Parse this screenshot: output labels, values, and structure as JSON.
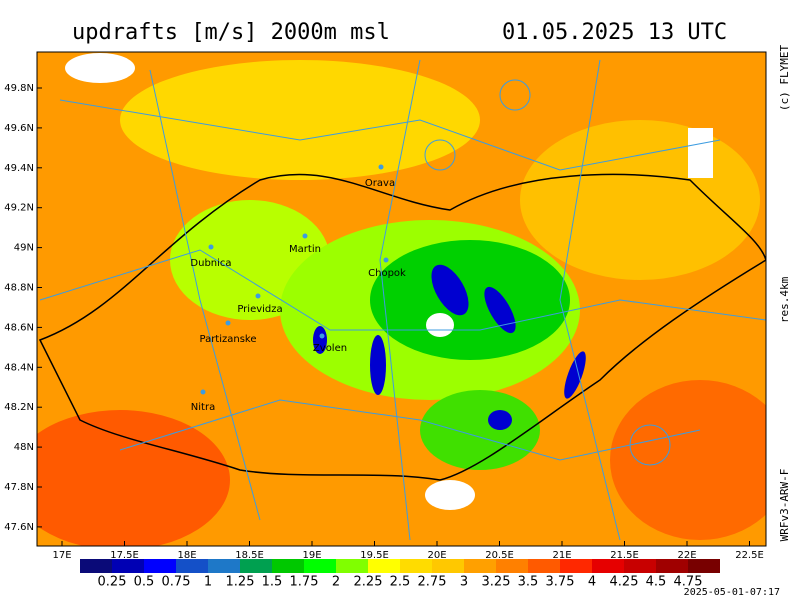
{
  "header": {
    "title": "updrafts [m/s] 2000m msl",
    "datetime": "01.05.2025 13 UTC"
  },
  "side_labels": {
    "copyright": "(c) FLYMET",
    "resolution": "res.4km",
    "model": "WRFv3-ARW-F"
  },
  "map": {
    "lon_ticks": [
      "17E",
      "17.5E",
      "18E",
      "18.5E",
      "19E",
      "19.5E",
      "20E",
      "20.5E",
      "21E",
      "21.5E",
      "22E",
      "22.5E"
    ],
    "lat_ticks": [
      "49.8N",
      "49.6N",
      "49.4N",
      "49.2N",
      "49N",
      "48.8N",
      "48.6N",
      "48.4N",
      "48.2N",
      "48N",
      "47.8N",
      "47.6N"
    ],
    "cities": [
      "Orava",
      "Martin",
      "Dubnica",
      "Chopok",
      "Prievidza",
      "Partizanske",
      "Zvolen",
      "Nitra"
    ]
  },
  "colorbar": {
    "labels": [
      "0.25",
      "0.5",
      "0.75",
      "1",
      "1.25",
      "1.5",
      "1.75",
      "2",
      "2.25",
      "2.5",
      "2.75",
      "3",
      "3.25",
      "3.5",
      "3.75",
      "4",
      "4.25",
      "4.5",
      "4.75"
    ],
    "colors": [
      "#0a0a78",
      "#0000b4",
      "#0000ff",
      "#1450c8",
      "#1e78c8",
      "#00a050",
      "#00c800",
      "#00ff00",
      "#80ff00",
      "#ffff00",
      "#ffdc00",
      "#ffc800",
      "#ffa000",
      "#ff8000",
      "#ff5a00",
      "#ff2800",
      "#e60000",
      "#c80000",
      "#a00000",
      "#780000"
    ]
  },
  "footer": {
    "timestamp": "2025-05-01-07:17"
  }
}
